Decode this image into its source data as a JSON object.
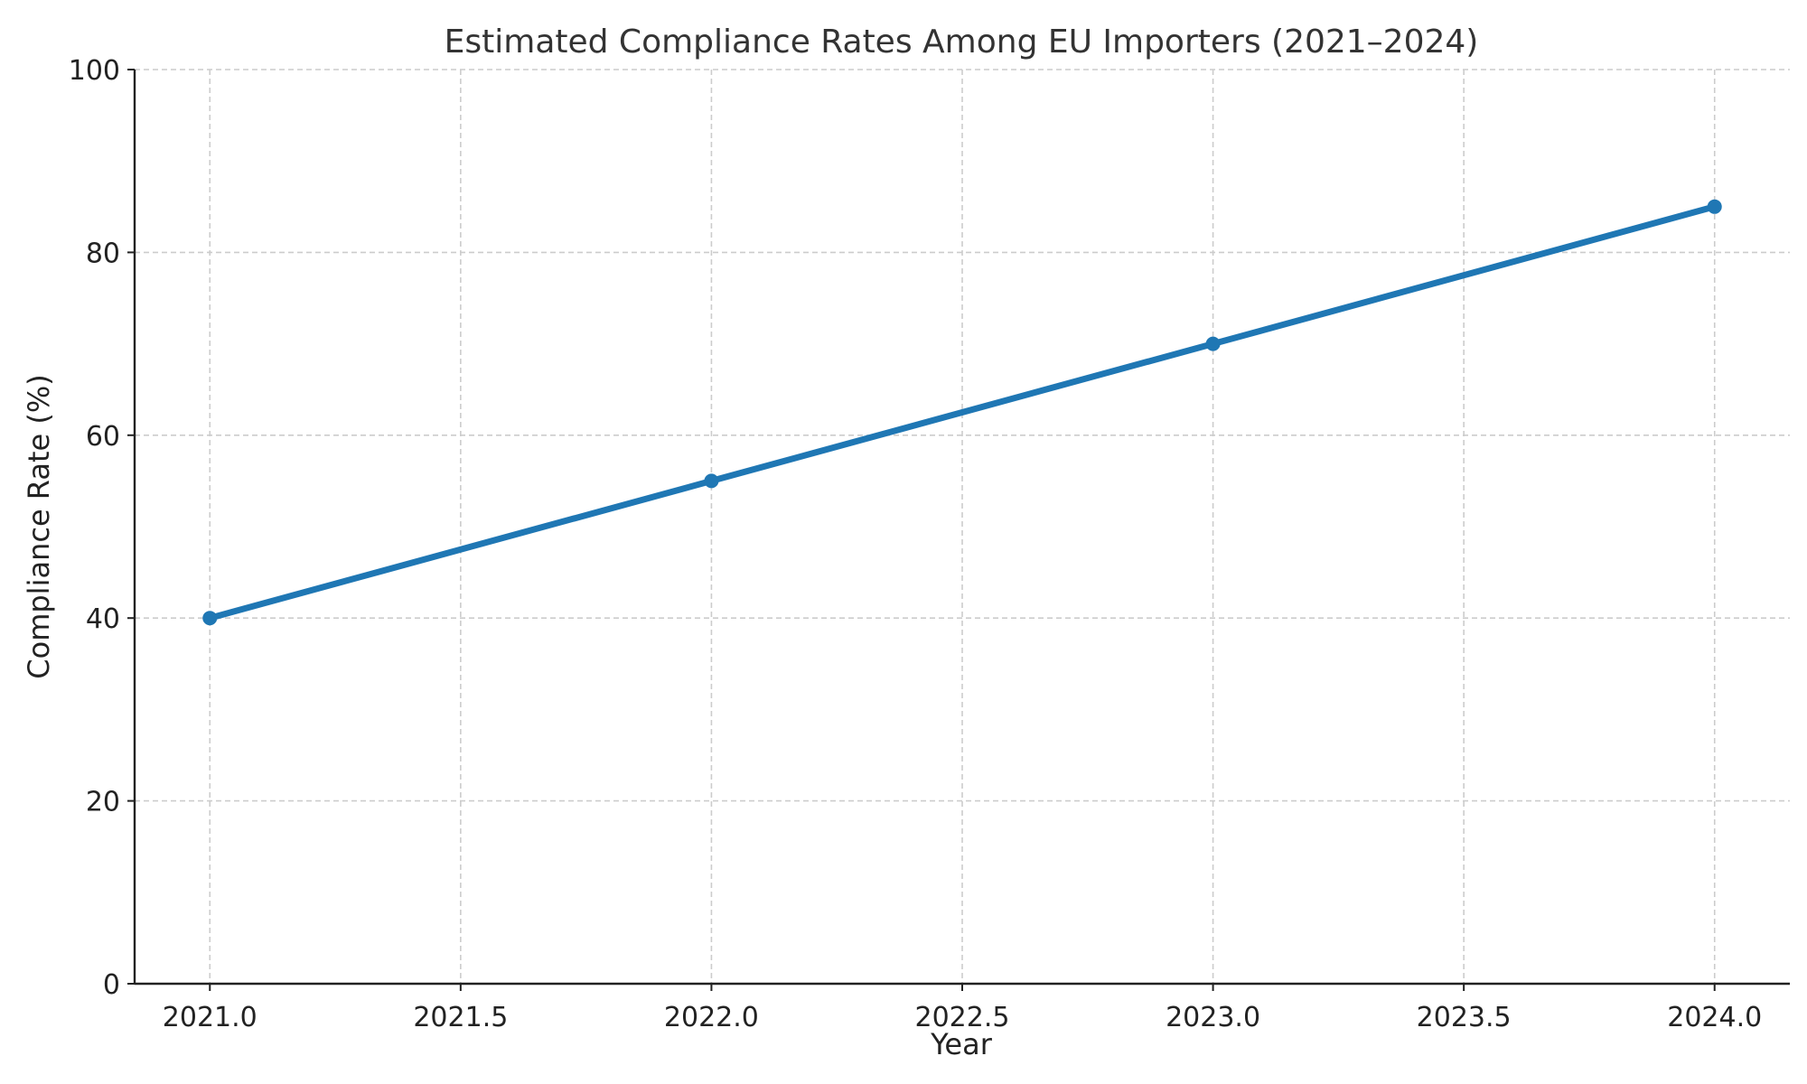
{
  "chart_data": {
    "type": "line",
    "title": "Estimated Compliance Rates Among EU Importers (2021–2024)",
    "xlabel": "Year",
    "ylabel": "Compliance Rate (%)",
    "x": [
      2021,
      2022,
      2023,
      2024
    ],
    "series": [
      {
        "values": [
          40,
          55,
          70,
          85
        ],
        "color": "#1f77b4",
        "marker": "circle"
      }
    ],
    "xlim": [
      2020.85,
      2024.15
    ],
    "ylim": [
      0,
      100
    ],
    "x_ticks": [
      2021.0,
      2021.5,
      2022.0,
      2022.5,
      2023.0,
      2023.5,
      2024.0
    ],
    "x_tick_labels": [
      "2021.0",
      "2021.5",
      "2022.0",
      "2022.5",
      "2023.0",
      "2023.5",
      "2024.0"
    ],
    "y_ticks": [
      0,
      20,
      40,
      60,
      80,
      100
    ],
    "y_tick_labels": [
      "0",
      "20",
      "40",
      "60",
      "80",
      "100"
    ],
    "grid": true,
    "grid_color": "#cccccc"
  }
}
